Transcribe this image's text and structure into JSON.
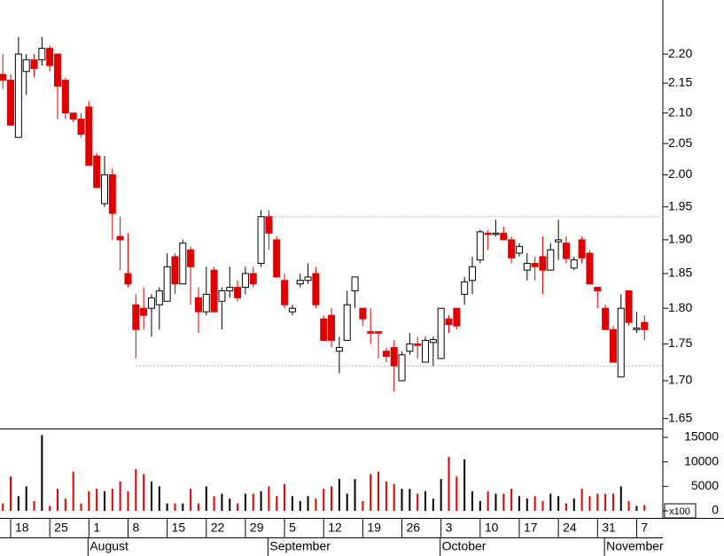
{
  "chart_data": [
    {
      "type": "candlestick",
      "log": true,
      "categories": [
        null,
        "18",
        null,
        null,
        null,
        null,
        "25",
        null,
        null,
        null,
        null,
        "1",
        null,
        null,
        null,
        null,
        "8",
        null,
        null,
        null,
        null,
        "15",
        null,
        null,
        null,
        null,
        "22",
        null,
        null,
        null,
        null,
        "29",
        null,
        null,
        null,
        null,
        "5",
        null,
        null,
        null,
        null,
        "12",
        null,
        null,
        null,
        null,
        "19",
        null,
        null,
        null,
        null,
        "26",
        null,
        null,
        null,
        null,
        "3",
        null,
        null,
        null,
        null,
        "10",
        null,
        null,
        null,
        null,
        "17",
        null,
        null,
        null,
        null,
        "24",
        null,
        null,
        null,
        null,
        "31",
        null,
        null,
        null,
        null,
        "7",
        null
      ],
      "months": [
        null,
        null,
        null,
        null,
        null,
        null,
        null,
        null,
        null,
        null,
        null,
        "August",
        null,
        null,
        null,
        null,
        null,
        null,
        null,
        null,
        null,
        null,
        null,
        null,
        null,
        null,
        null,
        null,
        null,
        null,
        null,
        null,
        null,
        null,
        "September",
        null,
        null,
        null,
        null,
        null,
        null,
        null,
        null,
        null,
        null,
        null,
        null,
        null,
        null,
        null,
        null,
        null,
        null,
        null,
        null,
        null,
        "October",
        null,
        null,
        null,
        null,
        null,
        null,
        null,
        null,
        null,
        null,
        null,
        null,
        null,
        null,
        null,
        null,
        null,
        null,
        null,
        null,
        "November",
        null,
        null,
        null,
        null,
        null
      ],
      "open": [
        2.165,
        2.155,
        2.06,
        2.17,
        2.19,
        2.19,
        2.21,
        2.2,
        2.155,
        2.1,
        2.09,
        2.11,
        2.03,
        1.955,
        2.0,
        1.905,
        1.85,
        1.805,
        1.8,
        1.8,
        1.805,
        1.81,
        1.875,
        1.835,
        1.885,
        1.815,
        1.795,
        1.855,
        1.81,
        1.825,
        1.83,
        1.83,
        1.85,
        1.865,
        1.935,
        1.9,
        1.84,
        1.795,
        1.835,
        1.84,
        1.85,
        1.785,
        1.79,
        1.74,
        1.755,
        1.825,
        1.8,
        1.767,
        1.767,
        1.74,
        1.745,
        1.7,
        1.74,
        1.75,
        1.725,
        1.752,
        1.73,
        1.785,
        1.8,
        1.82,
        1.84,
        1.87,
        1.91,
        1.908,
        1.91,
        1.9,
        1.88,
        1.855,
        1.865,
        1.875,
        1.855,
        1.897,
        1.895,
        1.858,
        1.9,
        1.88,
        1.83,
        1.8,
        1.77,
        1.705,
        1.825,
        1.77,
        1.78
      ],
      "high": [
        2.2,
        2.165,
        2.23,
        2.2,
        2.2,
        2.23,
        2.215,
        2.2,
        2.16,
        2.1,
        2.1,
        2.12,
        2.035,
        2.03,
        2.01,
        1.935,
        1.91,
        1.82,
        1.83,
        1.82,
        1.83,
        1.88,
        1.88,
        1.9,
        1.89,
        1.83,
        1.86,
        1.86,
        1.83,
        1.86,
        1.84,
        1.86,
        1.86,
        1.945,
        1.945,
        1.905,
        1.85,
        1.805,
        1.85,
        1.865,
        1.86,
        1.79,
        1.8,
        1.76,
        1.825,
        1.845,
        1.8,
        1.8,
        1.767,
        1.745,
        1.755,
        1.74,
        1.765,
        1.76,
        1.76,
        1.76,
        1.8,
        1.79,
        1.8,
        1.845,
        1.875,
        1.915,
        1.915,
        1.93,
        1.92,
        1.905,
        1.895,
        1.88,
        1.875,
        1.905,
        1.895,
        1.93,
        1.905,
        1.875,
        1.905,
        1.885,
        1.83,
        1.805,
        1.775,
        1.82,
        1.825,
        1.795,
        1.79
      ],
      "low": [
        2.14,
        2.08,
        2.06,
        2.13,
        2.16,
        2.18,
        2.17,
        2.09,
        2.09,
        2.085,
        2.06,
        2.015,
        1.98,
        1.95,
        1.9,
        1.855,
        1.83,
        1.73,
        1.77,
        1.76,
        1.77,
        1.81,
        1.82,
        1.835,
        1.805,
        1.765,
        1.79,
        1.795,
        1.77,
        1.815,
        1.81,
        1.82,
        1.83,
        1.86,
        1.885,
        1.845,
        1.8,
        1.79,
        1.83,
        1.835,
        1.8,
        1.755,
        1.745,
        1.71,
        1.755,
        1.8,
        1.775,
        1.75,
        1.73,
        1.725,
        1.685,
        1.7,
        1.735,
        1.73,
        1.725,
        1.72,
        1.73,
        1.765,
        1.77,
        1.805,
        1.82,
        1.865,
        1.885,
        1.905,
        1.9,
        1.865,
        1.875,
        1.84,
        1.84,
        1.82,
        1.855,
        1.87,
        1.865,
        1.855,
        1.865,
        1.835,
        1.8,
        1.77,
        1.725,
        1.705,
        1.775,
        1.765,
        1.755
      ],
      "close": [
        2.155,
        2.08,
        2.2,
        2.19,
        2.175,
        2.21,
        2.18,
        2.145,
        2.1,
        2.09,
        2.065,
        2.015,
        1.98,
        2.0,
        1.94,
        1.9,
        1.835,
        1.77,
        1.79,
        1.815,
        1.825,
        1.86,
        1.835,
        1.895,
        1.86,
        1.795,
        1.82,
        1.795,
        1.825,
        1.83,
        1.815,
        1.85,
        1.835,
        1.935,
        1.91,
        1.845,
        1.805,
        1.8,
        1.84,
        1.845,
        1.805,
        1.755,
        1.755,
        1.745,
        1.805,
        1.845,
        1.785,
        1.765,
        1.765,
        1.733,
        1.72,
        1.735,
        1.75,
        1.748,
        1.755,
        1.756,
        1.8,
        1.777,
        1.775,
        1.838,
        1.86,
        1.912,
        1.908,
        1.91,
        1.9,
        1.873,
        1.89,
        1.865,
        1.86,
        1.855,
        1.885,
        1.9,
        1.872,
        1.87,
        1.873,
        1.835,
        1.825,
        1.77,
        1.725,
        1.8,
        1.78,
        1.772,
        1.77
      ],
      "up_color": "#ffffff",
      "down_color": "#e00000",
      "outline_color": "#000000",
      "ylim": [
        1.637,
        2.296
      ],
      "yticks": [
        {
          "value": 2.2,
          "label": "2.20"
        },
        2.15,
        {
          "value": 2.1,
          "label": "2.10"
        },
        2.05,
        {
          "value": 2.0,
          "label": "2.00"
        },
        1.95,
        {
          "value": 1.9,
          "label": "1.90"
        },
        1.85,
        {
          "value": 1.8,
          "label": "1.80"
        },
        1.75,
        {
          "value": 1.7,
          "label": "1.70"
        },
        1.65
      ],
      "hlines": [
        1.935,
        1.72
      ]
    },
    {
      "type": "volume",
      "values": [
        1500,
        7000,
        3000,
        5000,
        2000,
        15500,
        1000,
        4500,
        2500,
        8000,
        1500,
        4000,
        4500,
        4000,
        4500,
        6000,
        4000,
        8500,
        7500,
        6000,
        5000,
        1500,
        1500,
        1500,
        4500,
        1500,
        5000,
        3000,
        3500,
        2500,
        1500,
        3500,
        3500,
        4000,
        5000,
        3000,
        5500,
        3000,
        2000,
        3000,
        2500,
        4500,
        5000,
        6500,
        3500,
        6500,
        2000,
        7500,
        8000,
        6000,
        5500,
        4500,
        4500,
        3500,
        4000,
        2500,
        6500,
        11000,
        7000,
        10500,
        4000,
        2000,
        4000,
        3500,
        3500,
        4500,
        3000,
        2500,
        3000,
        2000,
        3500,
        3000,
        1500,
        2500,
        4500,
        3000,
        3500,
        3500,
        3500,
        5000,
        2000,
        1000,
        1200
      ],
      "ylim": [
        0,
        16450
      ],
      "yticks": [
        0,
        5000,
        10000,
        15000
      ],
      "unit_label": "x100"
    }
  ]
}
